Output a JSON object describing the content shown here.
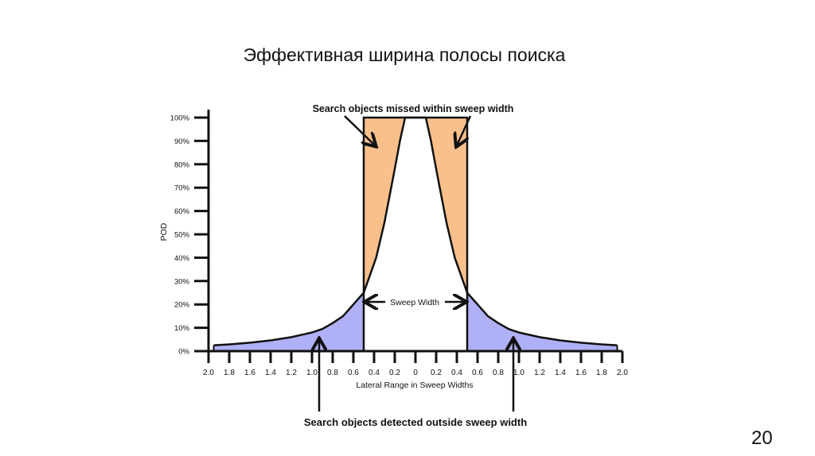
{
  "slide": {
    "title": "Эффективная ширина полосы поиска",
    "page_number": "20"
  },
  "chart_data": {
    "type": "area",
    "title": "",
    "xlabel": "Lateral Range in Sweep Widths",
    "ylabel": "POD",
    "xlim": [
      -2.0,
      2.0
    ],
    "ylim": [
      0,
      100
    ],
    "x_tick_labels": [
      "2.0",
      "1.8",
      "1.6",
      "1.4",
      "1.2",
      "1.0",
      "0.8",
      "0.6",
      "0.4",
      "0.2",
      "0",
      "0.2",
      "0.4",
      "0.6",
      "0.8",
      "1.0",
      "1.2",
      "1.4",
      "1.6",
      "1.8",
      "2.0"
    ],
    "y_tick_labels": [
      "0%",
      "10%",
      "20%",
      "30%",
      "40%",
      "50%",
      "60%",
      "70%",
      "80%",
      "90%",
      "100%"
    ],
    "grid": false,
    "sweep_width": [
      -0.5,
      0.5
    ],
    "curve": {
      "x": [
        0,
        0.1,
        0.15,
        0.2,
        0.3,
        0.38,
        0.46,
        0.5,
        0.6,
        0.7,
        0.8,
        0.9,
        1.0,
        1.2,
        1.4,
        1.6,
        1.8,
        1.95
      ],
      "pod": [
        100,
        100,
        90,
        78,
        55,
        40,
        30,
        25,
        20,
        15,
        12,
        9.5,
        8,
        6,
        4.6,
        3.6,
        2.9,
        2.5
      ]
    },
    "colors": {
      "missed_within": "#f9c08c",
      "detected_outside": "#b0b0f6"
    },
    "annotations": {
      "top": "Search objects missed within sweep width",
      "middle": "Sweep Width",
      "bottom": "Search objects detected outside sweep width"
    }
  }
}
